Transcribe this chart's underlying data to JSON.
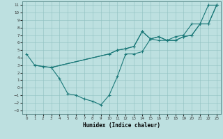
{
  "xlabel": "Humidex (Indice chaleur)",
  "bg_color": "#bde0e0",
  "line_color": "#1a7878",
  "xlim": [
    -0.5,
    23.5
  ],
  "ylim": [
    -3.5,
    11.5
  ],
  "xticks": [
    0,
    1,
    2,
    3,
    4,
    5,
    6,
    7,
    8,
    9,
    10,
    11,
    12,
    13,
    14,
    15,
    16,
    17,
    18,
    19,
    20,
    21,
    22,
    23
  ],
  "yticks": [
    -3,
    -2,
    -1,
    0,
    1,
    2,
    3,
    4,
    5,
    6,
    7,
    8,
    9,
    10,
    11
  ],
  "series": [
    {
      "x": [
        0,
        1,
        2,
        3,
        10,
        11,
        12,
        13,
        14,
        15,
        16,
        17,
        18,
        19,
        20,
        21,
        22,
        23
      ],
      "y": [
        4.5,
        3.0,
        2.8,
        2.7,
        4.5,
        5.0,
        5.2,
        5.5,
        7.5,
        6.5,
        6.8,
        6.3,
        6.3,
        6.8,
        7.0,
        8.5,
        8.5,
        11.0
      ]
    },
    {
      "x": [
        3,
        4,
        5,
        6,
        7,
        8,
        9,
        10,
        11,
        12,
        13,
        14,
        15,
        16,
        17,
        18,
        19,
        20,
        21,
        22,
        23
      ],
      "y": [
        2.7,
        1.2,
        -0.8,
        -1.0,
        -1.5,
        -1.8,
        -2.3,
        -1.0,
        1.5,
        4.5,
        4.5,
        4.8,
        6.5,
        6.3,
        6.3,
        6.8,
        7.0,
        8.5,
        8.5,
        11.0,
        11.0
      ]
    },
    {
      "x": [
        1,
        3,
        10,
        11,
        12,
        13,
        14,
        15,
        16,
        17,
        18,
        19,
        20,
        21,
        22,
        23
      ],
      "y": [
        3.0,
        2.7,
        4.5,
        5.0,
        5.2,
        5.5,
        7.5,
        6.5,
        6.8,
        6.3,
        6.3,
        6.8,
        7.0,
        8.5,
        8.5,
        11.0
      ]
    }
  ]
}
